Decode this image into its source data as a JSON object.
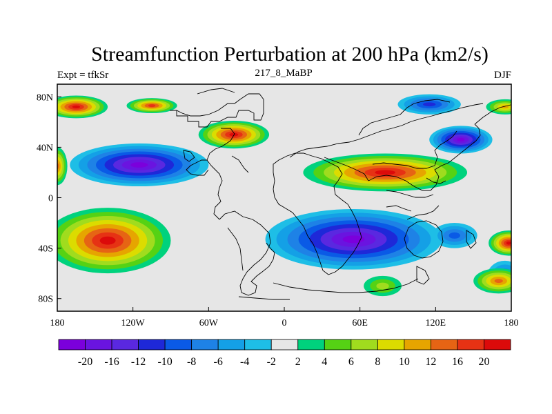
{
  "title": "Streamfunction Perturbation at 200 hPa (km2/s)",
  "left_label": "Expt = tfkSr",
  "center_label": "217_8_MaBP",
  "right_label": "DJF",
  "map": {
    "projection": "cylindrical-equidistant",
    "lon_range": [
      -180,
      180
    ],
    "lat_range": [
      -90,
      90
    ],
    "x_ticks": [
      {
        "lon": -180,
        "label": "180"
      },
      {
        "lon": -120,
        "label": "120W"
      },
      {
        "lon": -60,
        "label": "60W"
      },
      {
        "lon": 0,
        "label": "0"
      },
      {
        "lon": 60,
        "label": "60E"
      },
      {
        "lon": 120,
        "label": "120E"
      },
      {
        "lon": 180,
        "label": "180"
      }
    ],
    "y_ticks": [
      {
        "lat": 80,
        "label": "80N"
      },
      {
        "lat": 40,
        "label": "40N"
      },
      {
        "lat": 0,
        "label": "0"
      },
      {
        "lat": -40,
        "label": "40S"
      },
      {
        "lat": -80,
        "label": "80S"
      }
    ],
    "background_color": "#e6e6e6",
    "coastline_color": "#000000"
  },
  "colorbar": {
    "colors": [
      "#7b00dc",
      "#6a14e0",
      "#5a28e0",
      "#1e28d8",
      "#0a5ae6",
      "#1e82e6",
      "#14a0e6",
      "#1ebee6",
      "#e6e6e6",
      "#00d27d",
      "#55d214",
      "#a0dc1e",
      "#dcdc00",
      "#e6a500",
      "#e66414",
      "#e63214",
      "#dc0a0a"
    ],
    "labels": [
      "-20",
      "-16",
      "-12",
      "-10",
      "-8",
      "-6",
      "-4",
      "-2",
      "2",
      "4",
      "6",
      "8",
      "10",
      "12",
      "16",
      "20"
    ]
  },
  "fields": {
    "negative": [
      {
        "name": "North Pacific-America low",
        "lon": -115,
        "lat": 26,
        "rlon": 55,
        "rlat": 17,
        "level": 15
      },
      {
        "name": "South Atlantic-Indian low",
        "lon": 55,
        "lat": -33,
        "rlon": 70,
        "rlat": 24,
        "level": 14
      },
      {
        "name": "North Pacific east low",
        "lon": 140,
        "lat": 46,
        "rlon": 25,
        "rlat": 11,
        "level": 10
      },
      {
        "name": "Arctic Asia low",
        "lon": 115,
        "lat": 74,
        "rlon": 25,
        "rlat": 8,
        "level": 5
      },
      {
        "name": "South Pacific west low",
        "lon": 135,
        "lat": -30,
        "rlon": 18,
        "rlat": 10,
        "level": 4
      },
      {
        "name": "Southern Ocean east low",
        "lon": 175,
        "lat": -62,
        "rlon": 14,
        "rlat": 12,
        "level": 4
      }
    ],
    "positive": [
      {
        "name": "South Pacific high",
        "lon": -140,
        "lat": -34,
        "rlon": 50,
        "rlat": 26,
        "level": 23
      },
      {
        "name": "Asia subtropical high",
        "lon": 80,
        "lat": 20,
        "rlon": 65,
        "rlat": 15,
        "level": 23
      },
      {
        "name": "North Atlantic high",
        "lon": -40,
        "lat": 50,
        "rlon": 28,
        "rlat": 11,
        "level": 12
      },
      {
        "name": "North Pacific arctic high",
        "lon": -165,
        "lat": 72,
        "rlon": 25,
        "rlat": 9,
        "level": 8
      },
      {
        "name": "Alaska high",
        "lon": -105,
        "lat": 73,
        "rlon": 20,
        "rlat": 6,
        "level": 7
      },
      {
        "name": "Far east arctic high",
        "lon": 175,
        "lat": 72,
        "rlon": 15,
        "rlat": 6,
        "level": 5
      },
      {
        "name": "South Pacific east high",
        "lon": 178,
        "lat": -36,
        "rlon": 16,
        "rlat": 10,
        "level": 16
      },
      {
        "name": "Southern Ocean east high",
        "lon": 170,
        "lat": -66,
        "rlon": 20,
        "rlat": 10,
        "level": 6
      },
      {
        "name": "South Indian high",
        "lon": 78,
        "lat": -70,
        "rlon": 15,
        "rlat": 8,
        "level": 3
      },
      {
        "name": "Pacific west edge high",
        "lon": -180,
        "lat": 25,
        "rlon": 8,
        "rlat": 15,
        "level": 6
      }
    ]
  }
}
